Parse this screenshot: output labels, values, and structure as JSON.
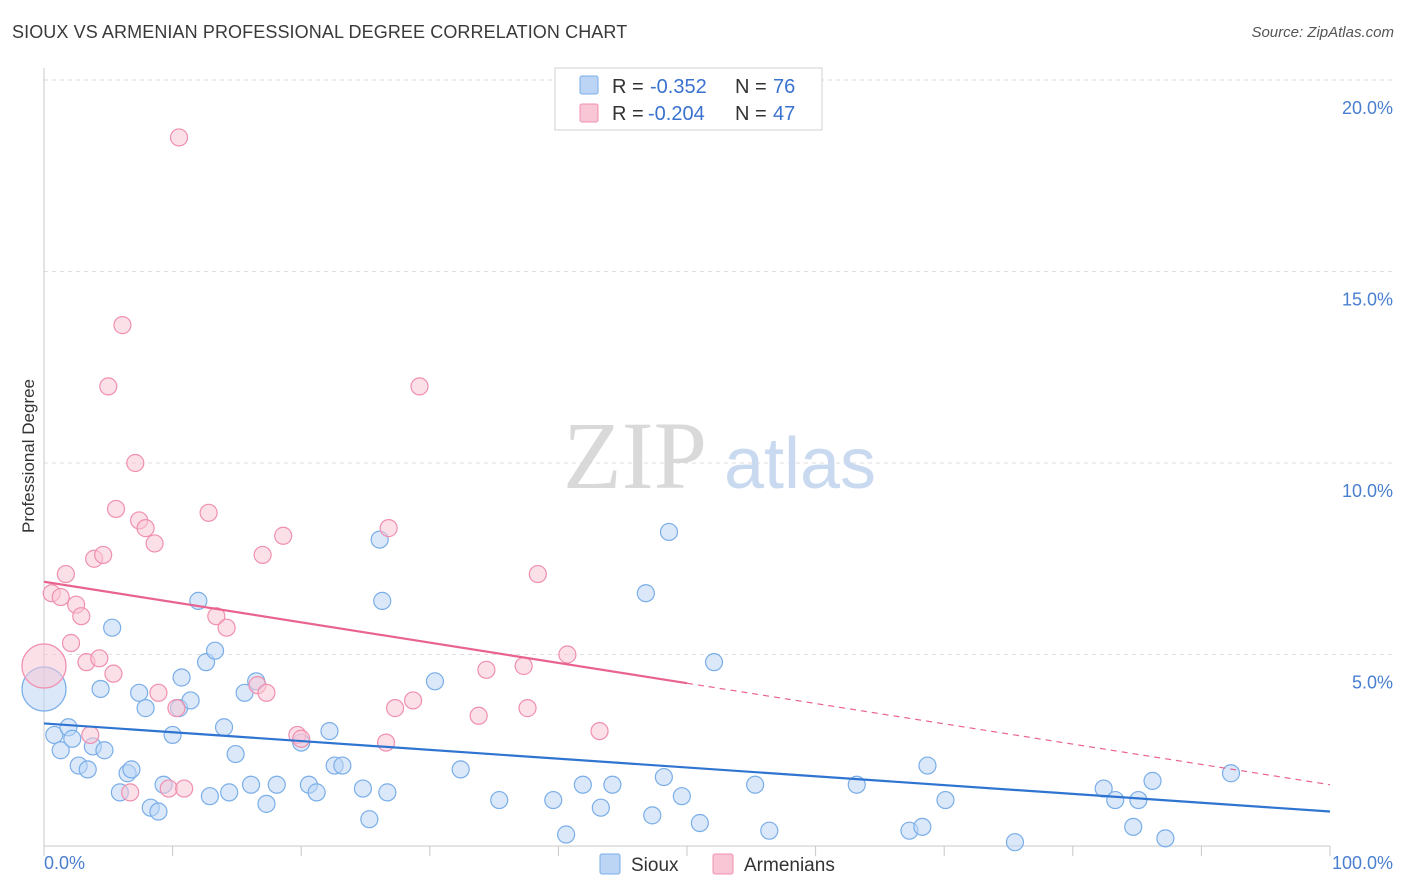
{
  "title": "SIOUX VS ARMENIAN PROFESSIONAL DEGREE CORRELATION CHART",
  "source": "Source: ZipAtlas.com",
  "watermark": {
    "zip": "ZIP",
    "atlas": "atlas"
  },
  "legend": {
    "r_label": "R =",
    "n_label": "N =",
    "items": [
      {
        "name": "Sioux",
        "r": "-0.352",
        "n": "76",
        "color": "#7aaee8",
        "fill": "#bcd5f5"
      },
      {
        "name": "Armenians",
        "r": "-0.204",
        "n": "47",
        "color": "#f08fb0",
        "fill": "#f9c6d6"
      }
    ]
  },
  "chart_data": {
    "type": "scatter",
    "title": "SIOUX VS ARMENIAN PROFESSIONAL DEGREE CORRELATION CHART",
    "xlabel": "",
    "ylabel": "Professional Degree",
    "xlim": [
      0,
      100
    ],
    "ylim": [
      0,
      20
    ],
    "x_tick_labels": [
      "0.0%",
      "100.0%"
    ],
    "y_ticks": [
      5,
      10,
      15,
      20
    ],
    "y_tick_labels": [
      "5.0%",
      "10.0%",
      "15.0%",
      "20.0%"
    ],
    "grid": true,
    "series": [
      {
        "name": "Sioux",
        "color": "#7aaee8",
        "trend": {
          "x0": 0,
          "y0": 3.2,
          "x1": 100,
          "y1": 0.9,
          "color": "#2e74d0"
        },
        "points": [
          [
            0,
            4.1,
            "large"
          ],
          [
            0.8,
            2.9
          ],
          [
            1.3,
            2.5
          ],
          [
            1.9,
            3.1
          ],
          [
            2.2,
            2.8
          ],
          [
            2.7,
            2.1
          ],
          [
            3.4,
            2.0
          ],
          [
            3.8,
            2.6
          ],
          [
            4.4,
            4.1
          ],
          [
            4.7,
            2.5
          ],
          [
            5.3,
            5.7
          ],
          [
            5.9,
            1.4
          ],
          [
            6.5,
            1.9
          ],
          [
            6.8,
            2.0
          ],
          [
            7.4,
            4.0
          ],
          [
            7.9,
            3.6
          ],
          [
            8.3,
            1.0
          ],
          [
            8.9,
            0.9
          ],
          [
            9.3,
            1.6
          ],
          [
            10.0,
            2.9
          ],
          [
            10.5,
            3.6
          ],
          [
            10.7,
            4.4
          ],
          [
            11.4,
            3.8
          ],
          [
            12.0,
            6.4
          ],
          [
            12.6,
            4.8
          ],
          [
            12.9,
            1.3
          ],
          [
            13.3,
            5.1
          ],
          [
            14.0,
            3.1
          ],
          [
            14.4,
            1.4
          ],
          [
            14.9,
            2.4
          ],
          [
            15.6,
            4.0
          ],
          [
            16.1,
            1.6
          ],
          [
            16.5,
            4.3
          ],
          [
            17.3,
            1.1
          ],
          [
            18.1,
            1.6
          ],
          [
            20.0,
            2.7
          ],
          [
            20.6,
            1.6
          ],
          [
            21.2,
            1.4
          ],
          [
            22.2,
            3.0
          ],
          [
            22.6,
            2.1
          ],
          [
            23.2,
            2.1
          ],
          [
            24.8,
            1.5
          ],
          [
            25.3,
            0.7
          ],
          [
            26.1,
            8.0
          ],
          [
            26.3,
            6.4
          ],
          [
            26.7,
            1.4
          ],
          [
            30.4,
            4.3
          ],
          [
            32.4,
            2.0
          ],
          [
            35.4,
            1.2
          ],
          [
            39.6,
            1.2
          ],
          [
            40.6,
            0.3
          ],
          [
            41.9,
            1.6
          ],
          [
            43.3,
            1.0
          ],
          [
            44.2,
            1.6
          ],
          [
            46.8,
            6.6
          ],
          [
            47.3,
            0.8
          ],
          [
            48.2,
            1.8
          ],
          [
            48.6,
            8.2
          ],
          [
            49.6,
            1.3
          ],
          [
            51.0,
            0.6
          ],
          [
            52.1,
            4.8
          ],
          [
            55.3,
            1.6
          ],
          [
            56.4,
            0.4
          ],
          [
            63.2,
            1.6
          ],
          [
            67.3,
            0.4
          ],
          [
            68.3,
            0.5
          ],
          [
            68.7,
            2.1
          ],
          [
            70.1,
            1.2
          ],
          [
            75.5,
            0.1
          ],
          [
            82.4,
            1.5
          ],
          [
            83.3,
            1.2
          ],
          [
            84.7,
            0.5
          ],
          [
            85.1,
            1.2
          ],
          [
            86.2,
            1.7
          ],
          [
            87.2,
            0.2
          ],
          [
            92.3,
            1.9
          ]
        ]
      },
      {
        "name": "Armenians",
        "color": "#f08fb0",
        "trend": {
          "x0": 0,
          "y0": 6.9,
          "x1": 100,
          "y1": 1.6,
          "solid_until_x": 50,
          "color": "#e8648f"
        },
        "points": [
          [
            0,
            4.7,
            "large"
          ],
          [
            0.6,
            6.6
          ],
          [
            1.3,
            6.5
          ],
          [
            1.7,
            7.1
          ],
          [
            2.1,
            5.3
          ],
          [
            2.5,
            6.3
          ],
          [
            2.9,
            6.0
          ],
          [
            3.3,
            4.8
          ],
          [
            3.6,
            2.9
          ],
          [
            3.9,
            7.5
          ],
          [
            4.3,
            4.9
          ],
          [
            4.6,
            7.6
          ],
          [
            5.0,
            12.0
          ],
          [
            5.4,
            4.5
          ],
          [
            5.6,
            8.8
          ],
          [
            6.1,
            13.6
          ],
          [
            6.7,
            1.4
          ],
          [
            7.1,
            10.0
          ],
          [
            7.4,
            8.5
          ],
          [
            7.9,
            8.3
          ],
          [
            8.6,
            7.9
          ],
          [
            8.9,
            4.0
          ],
          [
            9.7,
            1.5
          ],
          [
            10.3,
            3.6
          ],
          [
            10.5,
            18.5
          ],
          [
            10.9,
            1.5
          ],
          [
            12.8,
            8.7
          ],
          [
            13.4,
            6.0
          ],
          [
            14.2,
            5.7
          ],
          [
            16.6,
            4.2
          ],
          [
            17.0,
            7.6
          ],
          [
            17.3,
            4.0
          ],
          [
            18.6,
            8.1
          ],
          [
            19.7,
            2.9
          ],
          [
            20.0,
            2.8
          ],
          [
            26.6,
            2.7
          ],
          [
            26.8,
            8.3
          ],
          [
            27.3,
            3.6
          ],
          [
            28.7,
            3.8
          ],
          [
            29.2,
            12.0
          ],
          [
            33.8,
            3.4
          ],
          [
            34.4,
            4.6
          ],
          [
            37.3,
            4.7
          ],
          [
            37.6,
            3.6
          ],
          [
            38.4,
            7.1
          ],
          [
            40.7,
            5.0
          ],
          [
            43.2,
            3.0
          ]
        ]
      }
    ]
  }
}
